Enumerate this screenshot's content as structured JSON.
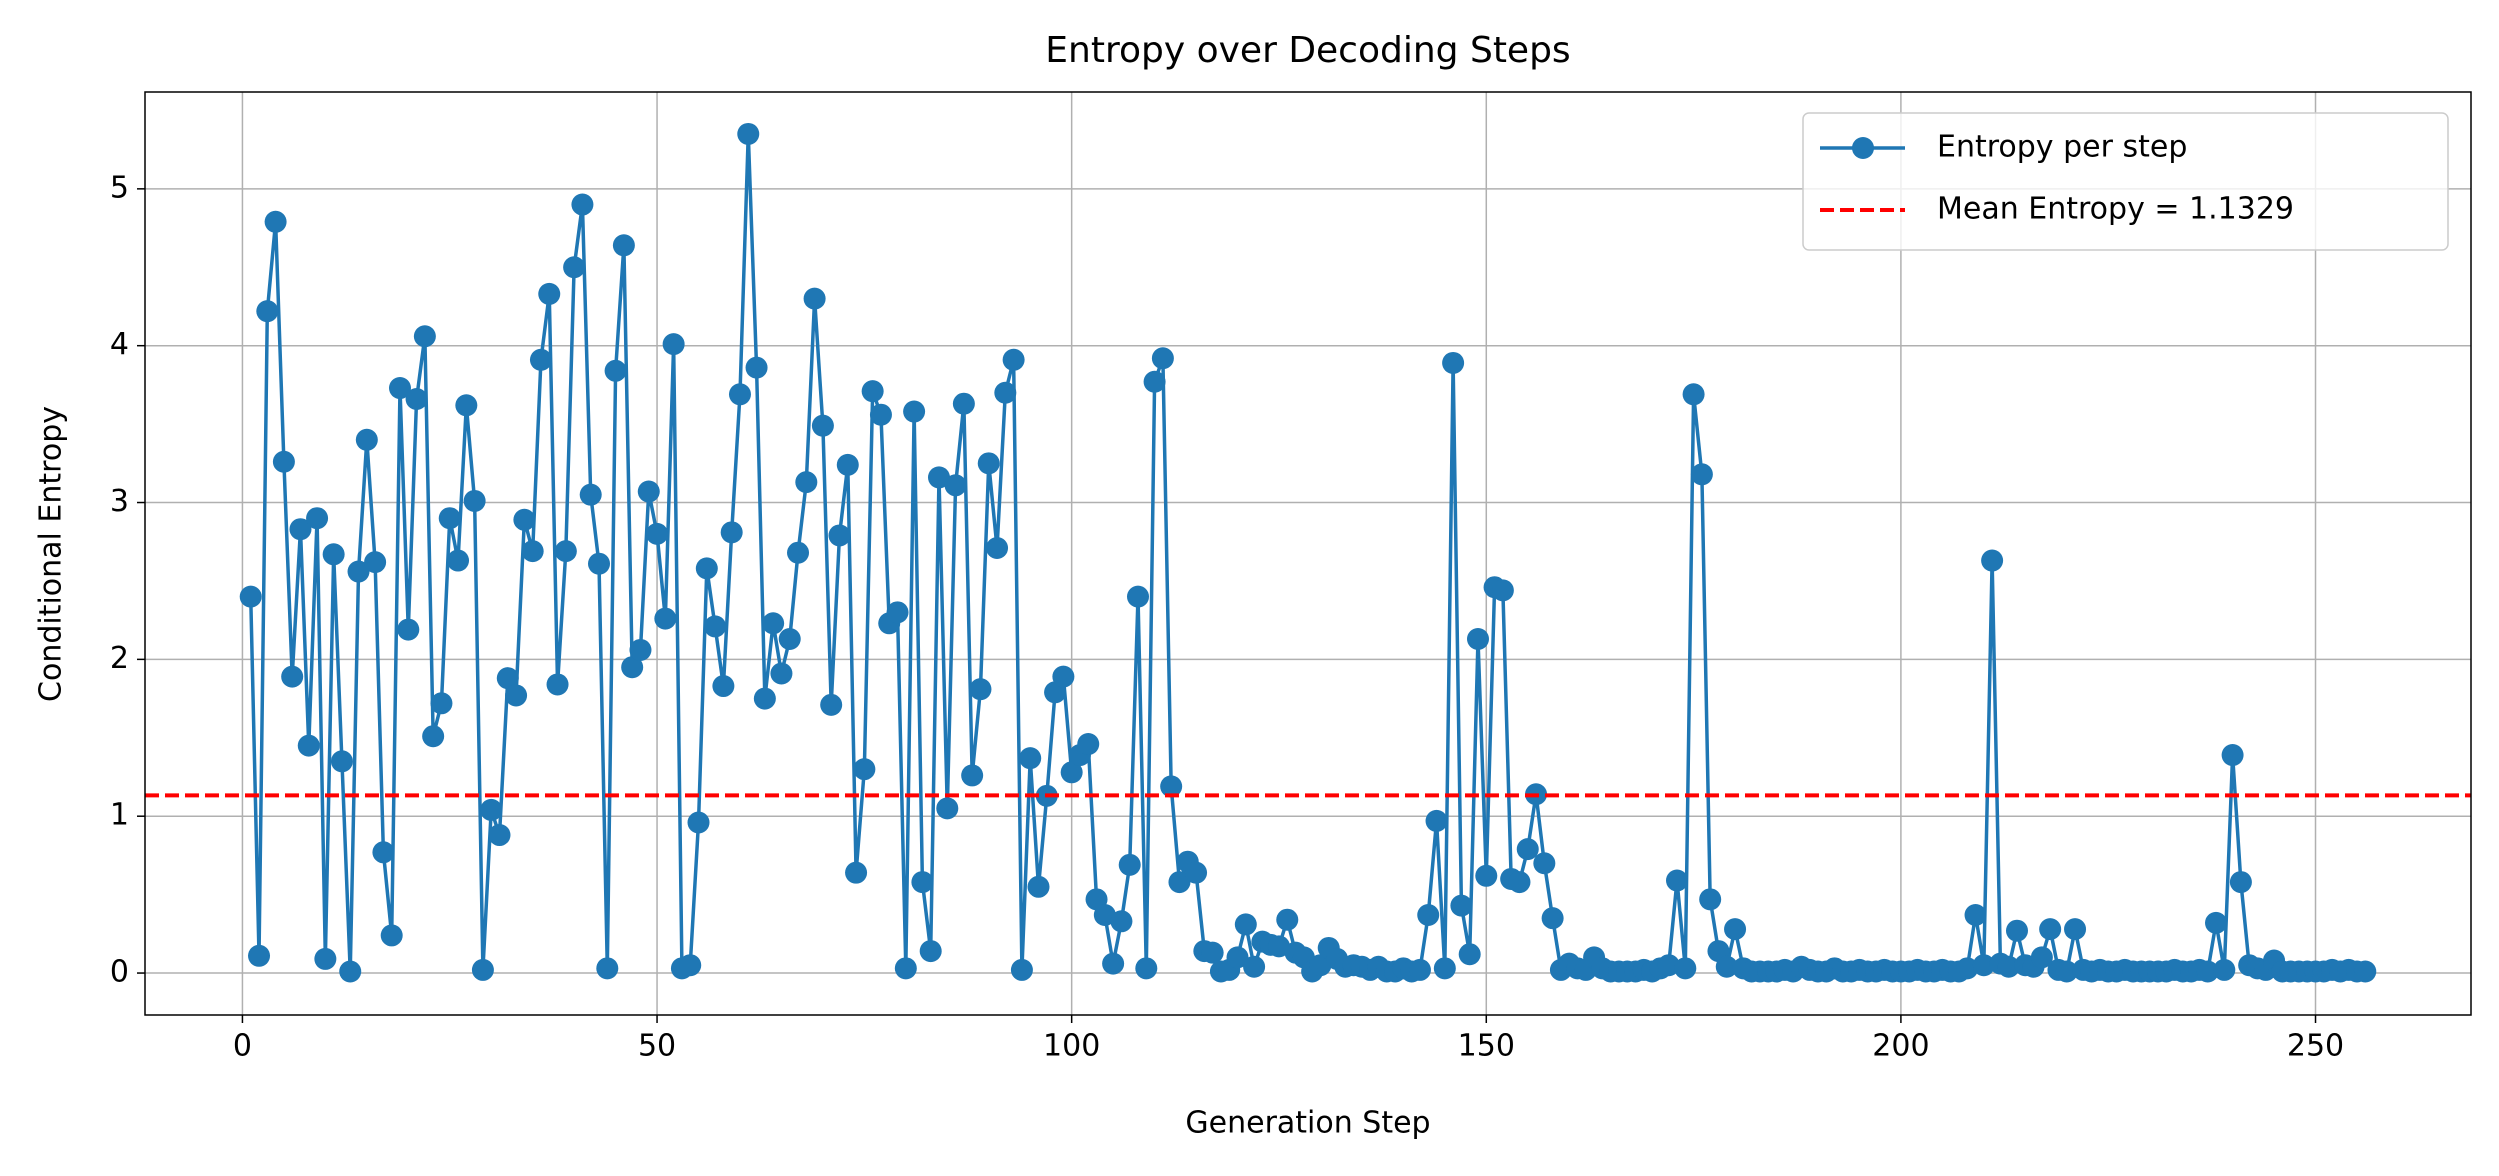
{
  "chart_data": {
    "type": "line",
    "title": "Entropy over Decoding Steps",
    "xlabel": "Generation Step",
    "ylabel": "Conditional Entropy",
    "x": [
      1,
      2,
      3,
      4,
      5,
      6,
      7,
      8,
      9,
      10,
      11,
      12,
      13,
      14,
      15,
      16,
      17,
      18,
      19,
      20,
      21,
      22,
      23,
      24,
      25,
      26,
      27,
      28,
      29,
      30,
      31,
      32,
      33,
      34,
      35,
      36,
      37,
      38,
      39,
      40,
      41,
      42,
      43,
      44,
      45,
      46,
      47,
      48,
      49,
      50,
      51,
      52,
      53,
      54,
      55,
      56,
      57,
      58,
      59,
      60,
      61,
      62,
      63,
      64,
      65,
      66,
      67,
      68,
      69,
      70,
      71,
      72,
      73,
      74,
      75,
      76,
      77,
      78,
      79,
      80,
      81,
      82,
      83,
      84,
      85,
      86,
      87,
      88,
      89,
      90,
      91,
      92,
      93,
      94,
      95,
      96,
      97,
      98,
      99,
      100,
      101,
      102,
      103,
      104,
      105,
      106,
      107,
      108,
      109,
      110,
      111,
      112,
      113,
      114,
      115,
      116,
      117,
      118,
      119,
      120,
      121,
      122,
      123,
      124,
      125,
      126,
      127,
      128,
      129,
      130,
      131,
      132,
      133,
      134,
      135,
      136,
      137,
      138,
      139,
      140,
      141,
      142,
      143,
      144,
      145,
      146,
      147,
      148,
      149,
      150,
      151,
      152,
      153,
      154,
      155,
      156,
      157,
      158,
      159,
      160,
      161,
      162,
      163,
      164,
      165,
      166,
      167,
      168,
      169,
      170,
      171,
      172,
      173,
      174,
      175,
      176,
      177,
      178,
      179,
      180,
      181,
      182,
      183,
      184,
      185,
      186,
      187,
      188,
      189,
      190,
      191,
      192,
      193,
      194,
      195,
      196,
      197,
      198,
      199,
      200,
      201,
      202,
      203,
      204,
      205,
      206,
      207,
      208,
      209,
      210,
      211,
      212,
      213,
      214,
      215,
      216,
      217,
      218,
      219,
      220,
      221,
      222,
      223,
      224,
      225,
      226,
      227,
      228,
      229,
      230,
      231,
      232,
      233,
      234,
      235,
      236,
      237,
      238,
      239,
      240,
      241,
      242,
      243,
      244,
      245,
      246,
      247,
      248,
      249,
      250,
      251,
      252,
      253,
      254,
      255,
      256
    ],
    "series": [
      {
        "name": "Entropy per step",
        "color": "#1f77b4",
        "marker": "o",
        "values": [
          2.4,
          0.11,
          4.22,
          4.79,
          3.26,
          1.89,
          2.83,
          1.45,
          2.9,
          0.09,
          2.67,
          1.35,
          0.01,
          2.56,
          3.4,
          2.62,
          0.77,
          0.24,
          3.73,
          2.19,
          3.66,
          4.06,
          1.51,
          1.72,
          2.9,
          2.63,
          3.62,
          3.01,
          0.02,
          1.04,
          0.88,
          1.88,
          1.77,
          2.89,
          2.69,
          3.91,
          4.33,
          1.84,
          2.69,
          4.5,
          4.9,
          3.05,
          2.61,
          0.03,
          3.84,
          4.64,
          1.95,
          2.06,
          3.07,
          2.8,
          2.26,
          4.01,
          0.03,
          0.05,
          0.96,
          2.58,
          2.21,
          1.83,
          2.81,
          3.69,
          5.35,
          3.86,
          1.75,
          2.23,
          1.91,
          2.13,
          2.68,
          3.13,
          4.3,
          3.49,
          1.71,
          2.79,
          3.24,
          0.64,
          1.3,
          3.71,
          3.56,
          2.23,
          2.3,
          0.03,
          3.58,
          0.58,
          0.14,
          3.16,
          1.05,
          3.11,
          3.63,
          1.26,
          1.81,
          3.25,
          2.71,
          3.7,
          3.91,
          0.02,
          1.37,
          0.55,
          1.13,
          1.79,
          1.89,
          1.28,
          1.39,
          1.46,
          0.47,
          0.37,
          0.06,
          0.33,
          0.69,
          2.4,
          0.03,
          3.77,
          3.92,
          1.19,
          0.58,
          0.71,
          0.64,
          0.14,
          0.13,
          0.01,
          0.02,
          0.1,
          0.31,
          0.04,
          0.2,
          0.18,
          0.17,
          0.34,
          0.13,
          0.1,
          0.01,
          0.05,
          0.16,
          0.09,
          0.04,
          0.05,
          0.04,
          0.02,
          0.04,
          0.01,
          0.01,
          0.03,
          0.01,
          0.02,
          0.37,
          0.97,
          0.03,
          3.89,
          0.43,
          0.12,
          2.13,
          0.62,
          2.46,
          2.44,
          0.6,
          0.58,
          0.79,
          1.14,
          0.7,
          0.35,
          0.02,
          0.06,
          0.03,
          0.02,
          0.1,
          0.03,
          0.01,
          0.01,
          0.01,
          0.01,
          0.02,
          0.01,
          0.03,
          0.05,
          0.59,
          0.03,
          3.69,
          3.18,
          0.47,
          0.14,
          0.04,
          0.28,
          0.03,
          0.01,
          0.01,
          0.01,
          0.01,
          0.02,
          0.01,
          0.04,
          0.02,
          0.01,
          0.01,
          0.03,
          0.01,
          0.01,
          0.02,
          0.01,
          0.01,
          0.02,
          0.01,
          0.01,
          0.01,
          0.02,
          0.01,
          0.01,
          0.02,
          0.01,
          0.01,
          0.03,
          0.37,
          0.05,
          2.63,
          0.06,
          0.04,
          0.27,
          0.05,
          0.04,
          0.1,
          0.28,
          0.02,
          0.01,
          0.28,
          0.02,
          0.01,
          0.02,
          0.01,
          0.01,
          0.02,
          0.01,
          0.01,
          0.01,
          0.01,
          0.01,
          0.02,
          0.01,
          0.01,
          0.02,
          0.01,
          0.32,
          0.02,
          1.39,
          0.58,
          0.05,
          0.03,
          0.02,
          0.08,
          0.01,
          0.01,
          0.01,
          0.01,
          0.01,
          0.01,
          0.02,
          0.01,
          0.02,
          0.01,
          0.01
        ]
      }
    ],
    "mean_line": {
      "name": "Mean Entropy = 1.1329",
      "value": 1.1329,
      "color": "#ff0000",
      "style": "dashed"
    },
    "xlim": [
      -11.75,
      268.75
    ],
    "xticks": [
      0,
      50,
      100,
      150,
      200,
      250
    ],
    "ylim": [
      -0.2675,
      5.6175
    ],
    "yticks": [
      0,
      1,
      2,
      3,
      4,
      5
    ],
    "grid": true,
    "legend": "upper right"
  }
}
